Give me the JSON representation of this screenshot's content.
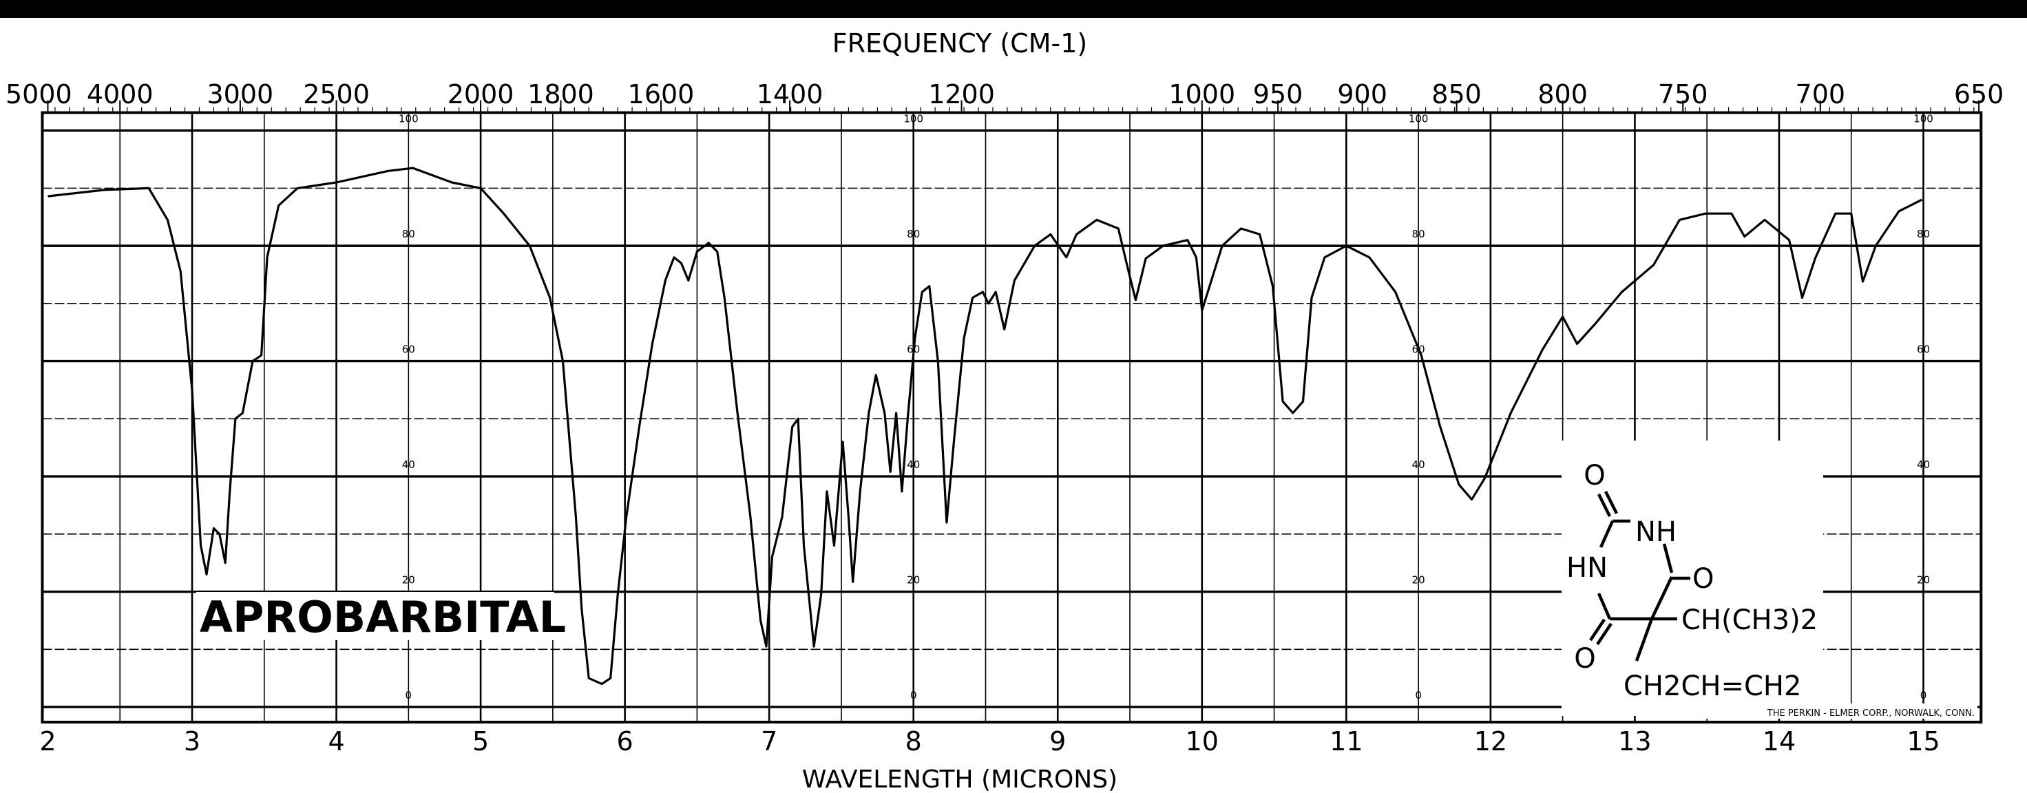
{
  "chart_data": {
    "type": "line",
    "title": "APROBARBITAL",
    "xlabel": "WAVELENGTH (MICRONS)",
    "x2label": "FREQUENCY (CM-1)",
    "xlim": [
      2,
      15.4
    ],
    "ylim": [
      0,
      100
    ],
    "grid": true,
    "x_ticks": [
      "2",
      "3",
      "4",
      "5",
      "6",
      "7",
      "8",
      "9",
      "10",
      "11",
      "12",
      "13",
      "14",
      "15"
    ],
    "frequency_ticks": [
      "5000",
      "4000",
      "3000",
      "2500",
      "2000",
      "1800",
      "1600",
      "1400",
      "1200",
      "1000",
      "950",
      "900",
      "850",
      "800",
      "750",
      "700",
      "650"
    ],
    "y_ticks": [
      "100",
      "80",
      "60",
      "40",
      "20",
      "0"
    ],
    "series": [
      {
        "x": [
          2.0,
          2.39,
          2.7,
          2.83,
          2.92,
          3.0,
          3.06,
          3.1,
          3.15,
          3.19,
          3.23,
          3.26,
          3.3,
          3.35,
          3.42,
          3.48,
          3.52,
          3.6,
          3.73,
          4.0,
          4.36,
          4.53,
          4.8,
          5.0,
          5.16,
          5.34,
          5.48,
          5.57,
          5.66,
          5.7,
          5.75,
          5.84,
          5.9,
          5.95,
          6.01,
          6.1,
          6.19,
          6.28,
          6.34,
          6.39,
          6.44,
          6.5,
          6.58,
          6.64,
          6.69,
          6.78,
          6.87,
          6.94,
          6.98,
          7.02,
          7.09,
          7.16,
          7.2,
          7.24,
          7.31,
          7.36,
          7.4,
          7.45,
          7.51,
          7.55,
          7.58,
          7.63,
          7.69,
          7.74,
          7.8,
          7.84,
          7.88,
          7.92,
          7.96,
          8.01,
          8.06,
          8.11,
          8.17,
          8.23,
          8.28,
          8.35,
          8.41,
          8.48,
          8.52,
          8.57,
          8.63,
          8.7,
          8.84,
          8.95,
          9.06,
          9.13,
          9.27,
          9.42,
          9.48,
          9.54,
          9.61,
          9.73,
          9.9,
          9.96,
          10.0,
          10.04,
          10.14,
          10.27,
          10.4,
          10.49,
          10.56,
          10.63,
          10.7,
          10.76,
          10.85,
          11.0,
          11.16,
          11.34,
          11.52,
          11.65,
          11.78,
          11.87,
          11.96,
          12.14,
          12.36,
          12.5,
          12.6,
          12.73,
          12.91,
          13.13,
          13.31,
          13.49,
          13.67,
          13.76,
          13.9,
          14.07,
          14.16,
          14.25,
          14.39,
          14.5,
          14.58,
          14.67,
          14.83,
          14.99
        ],
        "y": [
          88.6,
          89.7,
          90,
          84.5,
          75.6,
          55,
          28,
          23,
          31,
          30,
          25,
          37,
          50,
          51,
          60,
          61,
          78,
          87,
          90,
          91,
          93,
          93.5,
          91,
          90,
          85.6,
          80,
          71,
          60,
          33,
          17,
          5,
          4,
          5,
          19.5,
          33,
          48.7,
          63,
          74,
          78,
          77,
          74,
          79,
          80.5,
          79,
          71,
          51,
          33,
          15,
          10.5,
          26,
          33,
          48.6,
          50,
          28,
          10.5,
          19.5,
          37.4,
          28,
          46,
          33,
          21.7,
          37.4,
          51,
          57.6,
          51,
          40.8,
          51,
          37.4,
          50,
          64,
          72,
          73,
          60,
          32,
          46,
          64,
          71,
          72,
          70,
          72,
          65.5,
          74,
          80,
          82,
          78,
          82,
          84.5,
          83,
          76.7,
          70.6,
          77.8,
          80,
          81,
          78,
          68.8,
          72,
          80,
          83,
          82,
          73,
          53,
          51,
          53,
          71,
          78,
          80,
          78,
          72,
          61,
          48.7,
          38.6,
          36,
          39.7,
          51,
          62,
          67.7,
          63,
          66.6,
          72,
          76.7,
          84.5,
          85.6,
          85.6,
          81.6,
          84.5,
          81,
          71,
          77.8,
          85.6,
          85.6,
          73.8,
          80,
          86,
          88
        ]
      }
    ]
  },
  "molecule": {
    "atoms": {
      "o_top": "O",
      "nh": "NH",
      "hn": "HN",
      "o_right": "O",
      "o_bottom": "O"
    },
    "substituent_1": "CH(CH3)2",
    "substituent_2": "CH2CH=CH2"
  },
  "footer": "THE PERKIN - ELMER CORP., NORWALK, CONN.",
  "colors": {
    "ink": "#000000",
    "paper": "#ffffff"
  }
}
